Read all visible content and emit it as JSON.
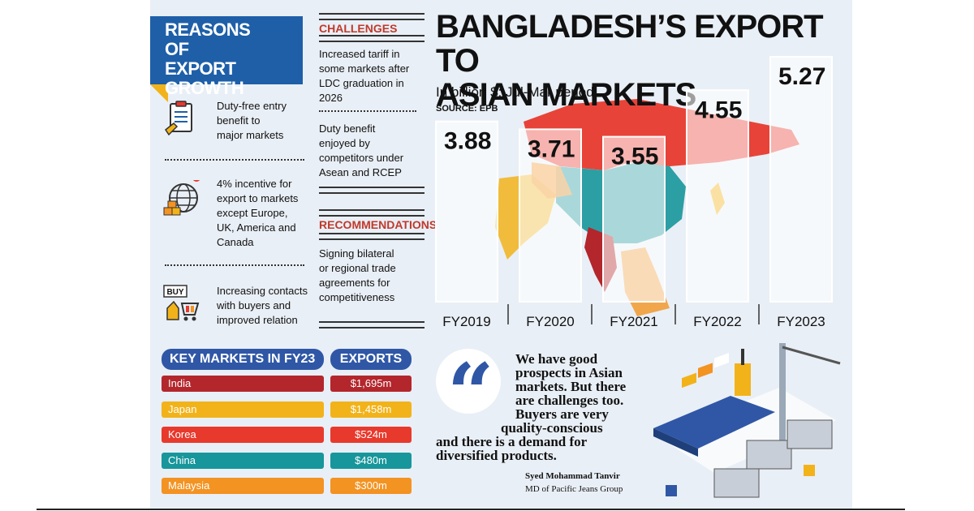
{
  "reasons": {
    "title_lines": [
      "REASONS",
      "OF EXPORT",
      "GROWTH"
    ],
    "items": [
      {
        "icon": "clipboard-icon",
        "lines": [
          "Duty-free entry",
          "benefit to",
          "major markets"
        ]
      },
      {
        "icon": "globe-icon",
        "lines": [
          "4% incentive for",
          "export to markets",
          "except Europe,",
          "UK, America and",
          "Canada"
        ]
      },
      {
        "icon": "buy-cart-icon",
        "badge": "BUY",
        "lines": [
          "Increasing contacts",
          "with buyers and",
          "improved relation"
        ]
      }
    ]
  },
  "challenges": {
    "heading": "CHALLENGES",
    "items": [
      {
        "lines": [
          "Increased tariff in",
          "some markets after",
          "LDC graduation in",
          "2026"
        ]
      },
      {
        "lines": [
          "Duty benefit",
          "enjoyed by",
          "competitors under",
          "Asean and RCEP"
        ]
      }
    ]
  },
  "recommendations": {
    "heading": "RECOMMENDATIONS",
    "lines": [
      "Signing bilateral",
      "or regional trade",
      "agreements for",
      "competitiveness"
    ]
  },
  "header": {
    "title_lines": [
      "BANGLADESH’S EXPORT TO",
      "ASIAN MARKETS"
    ],
    "subtitle": "In billion $; Jul-Mar period",
    "source": "SOURCE: EPB"
  },
  "chart_data": {
    "type": "bar",
    "title": "BANGLADESH’S EXPORT TO ASIAN MARKETS",
    "subtitle": "In billion $; Jul-Mar period",
    "categories": [
      "FY2019",
      "FY2020",
      "FY2021",
      "FY2022",
      "FY2023"
    ],
    "values": [
      3.88,
      3.71,
      3.55,
      4.55,
      5.27
    ],
    "value_labels": [
      "3.88",
      "3.71",
      "3.55",
      "4.55",
      "5.27"
    ],
    "grid": false
  },
  "markets": {
    "head_label": "KEY MARKETS IN FY23",
    "head_value": "EXPORTS",
    "rows": [
      {
        "name": "India",
        "value": "$1,695m",
        "color": "#b3262c"
      },
      {
        "name": "Japan",
        "value": "$1,458m",
        "color": "#f2b31a"
      },
      {
        "name": "Korea",
        "value": "$524m",
        "color": "#e8392d"
      },
      {
        "name": "China",
        "value": "$480m",
        "color": "#17969b"
      },
      {
        "name": "Malaysia",
        "value": "$300m",
        "color": "#f39322"
      }
    ]
  },
  "quote": {
    "lines": [
      "We have good",
      "prospects in Asian",
      "markets. But there",
      "are challenges too.",
      "Buyers are very",
      "quality-conscious",
      "and there is a demand for",
      "diversified products."
    ],
    "name": "Syed Mohammad Tanvir",
    "role": "MD of Pacific Jeans Group"
  },
  "colors": {
    "accent_blue": "#1e5fa8",
    "accent_red": "#c0392b",
    "map_red": "#e8392d",
    "map_teal": "#17969b",
    "map_yellow": "#f2b31a"
  }
}
